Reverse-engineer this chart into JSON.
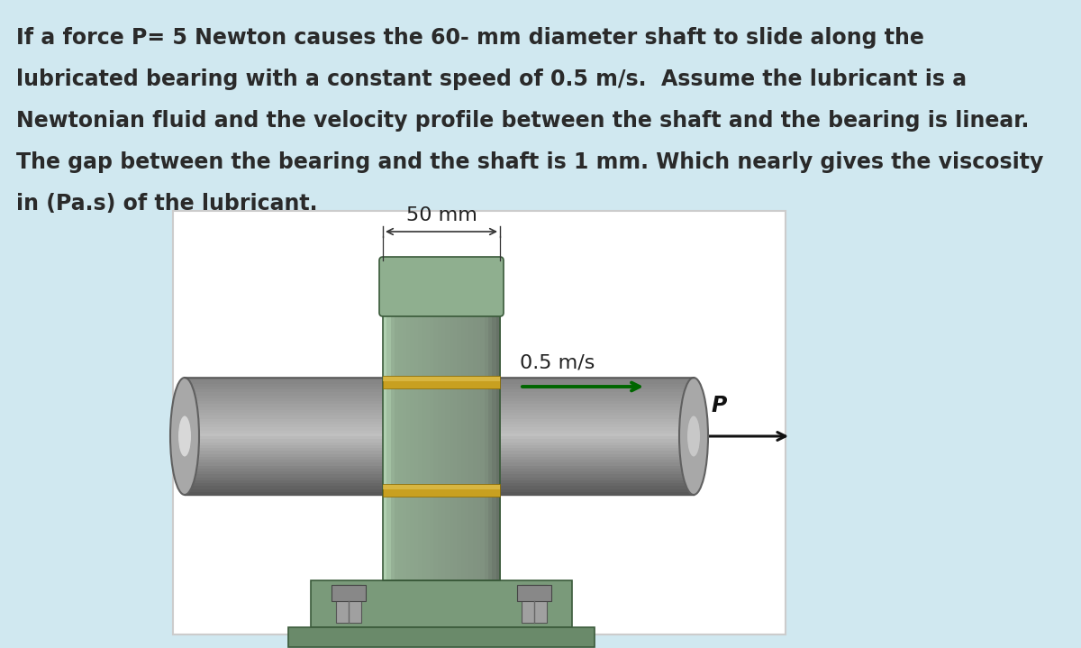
{
  "bg_color": "#d0e8f0",
  "diagram_bg": "#ffffff",
  "title_text_lines": [
    "If a force P= 5 Newton causes the 60- mm diameter shaft to slide along the",
    "lubricated bearing with a constant speed of 0.5 m/s.  Assume the lubricant is a",
    "Newtonian fluid and the velocity profile between the shaft and the bearing is linear.",
    "The gap between the bearing and the shaft is 1 mm. Which nearly gives the viscosity",
    "in (Pa.s) of the lubricant."
  ],
  "speed_label": "0.5 m/s",
  "force_label": "P",
  "dim_label": "50 mm",
  "bearing_color_top": "#9fbf9f",
  "bearing_color_mid": "#7a9a7a",
  "bearing_color_dark": "#5a7a5a",
  "bearing_color_left": "#b0d0b0",
  "shaft_color_main": "#909090",
  "shaft_color_top": "#c8c8c8",
  "shaft_color_bottom": "#585858",
  "shaft_color_cap": "#a8a8a8",
  "lub_color": "#c8a020",
  "lub_highlight": "#e0c050",
  "base_color": "#7a9a7a",
  "base_dark": "#5a7a5a",
  "bolt_color": "#909090",
  "ground_line": "#888888",
  "ground_hatch": "#aaaaaa",
  "text_color": "#2a2a2a",
  "dim_line_color": "#333333",
  "vel_arrow_color": "#006600",
  "force_arrow_color": "#111111"
}
